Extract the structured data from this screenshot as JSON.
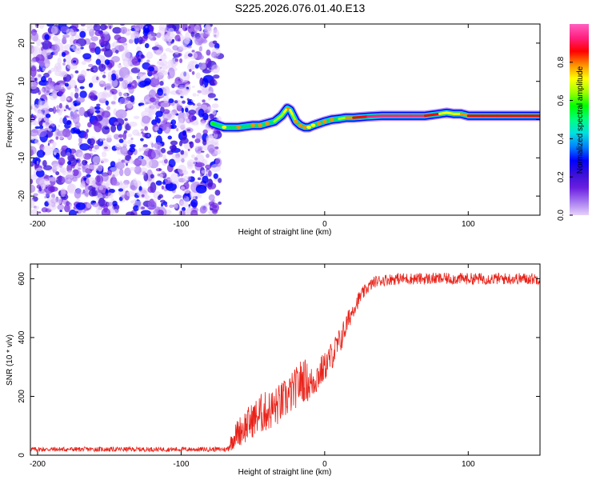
{
  "figure_title": "S225.2026.076.01.40.E13",
  "chart_data": [
    {
      "type": "heatmap",
      "title": "S225.2026.076.01.40.E13",
      "xlabel": "Height of straight line (km)",
      "ylabel": "Frequency (Hz)",
      "xlim": [
        -205,
        150
      ],
      "ylim": [
        -25,
        25
      ],
      "xticks": [
        -200,
        -100,
        0,
        100
      ],
      "xtick_labels": [
        "-200",
        "-100",
        "0",
        "100"
      ],
      "yticks": [
        -20,
        -10,
        0,
        10,
        20
      ],
      "ytick_labels": [
        "-20",
        "-10",
        "0",
        "10",
        "20"
      ],
      "noise_region_x": [
        -205,
        -73
      ],
      "signal_trace": {
        "x": [
          -78,
          -70,
          -60,
          -50,
          -45,
          -40,
          -35,
          -30,
          -28,
          -26,
          -24,
          -22,
          -20,
          -17,
          -14,
          -11,
          -8,
          -4,
          0,
          5,
          10,
          15,
          20,
          30,
          40,
          50,
          60,
          70,
          80,
          85,
          90,
          95,
          100,
          110,
          120,
          130,
          140,
          150
        ],
        "y": [
          -1,
          -2,
          -2,
          -1.5,
          -1.5,
          -1,
          -0.5,
          1,
          2,
          3,
          2.5,
          1,
          -0.5,
          -1.5,
          -2,
          -2,
          -1.5,
          -1,
          -0.5,
          0,
          0.2,
          0.5,
          0.5,
          0.8,
          1,
          1,
          1,
          1,
          1.5,
          1.8,
          1.5,
          1.5,
          1,
          1,
          1,
          1,
          1,
          1
        ],
        "amplitude": [
          0.35,
          0.45,
          0.5,
          0.5,
          0.55,
          0.55,
          0.6,
          0.65,
          0.7,
          0.75,
          0.75,
          0.7,
          0.55,
          0.5,
          0.5,
          0.45,
          0.45,
          0.5,
          0.55,
          0.55,
          0.6,
          0.75,
          0.85,
          0.9,
          0.9,
          0.95,
          0.95,
          0.9,
          0.75,
          0.7,
          0.75,
          0.7,
          0.8,
          0.85,
          0.85,
          0.85,
          0.9,
          0.85
        ]
      },
      "colorbar": {
        "label": "Normalized spectral amplitude",
        "range": [
          0,
          1
        ],
        "ticks": [
          0.0,
          0.2,
          0.4,
          0.6,
          0.8
        ],
        "tick_labels": [
          "0.0",
          "0.2",
          "0.4",
          "0.6",
          "0.8"
        ],
        "colors": [
          "#e6d2fa",
          "#a678f0",
          "#6a1fe0",
          "#3a10d8",
          "#0000ff",
          "#0080ff",
          "#00e0e0",
          "#00ff80",
          "#00ff00",
          "#a0ff00",
          "#ffff00",
          "#ff9000",
          "#ff0000",
          "#ff2080",
          "#ff60c0"
        ]
      }
    },
    {
      "type": "line",
      "xlabel": "Height of straight line (km)",
      "ylabel": "SNR (10 * v/v)",
      "xlim": [
        -205,
        150
      ],
      "ylim": [
        0,
        650
      ],
      "xticks": [
        -200,
        -100,
        0,
        100
      ],
      "xtick_labels": [
        "-200",
        "-100",
        "0",
        "100"
      ],
      "yticks": [
        0,
        200,
        400,
        600
      ],
      "ytick_labels": [
        "0",
        "200",
        "400",
        "600"
      ],
      "color": "#e8231a",
      "series": [
        {
          "name": "SNR",
          "x": [
            -205,
            -190,
            -170,
            -150,
            -130,
            -110,
            -90,
            -75,
            -68,
            -65,
            -62,
            -60,
            -55,
            -50,
            -45,
            -40,
            -35,
            -30,
            -25,
            -20,
            -15,
            -10,
            -5,
            0,
            5,
            10,
            15,
            20,
            25,
            30,
            35,
            40,
            50,
            60,
            70,
            80,
            90,
            100,
            110,
            120,
            130,
            140,
            150
          ],
          "y": [
            20,
            20,
            20,
            20,
            20,
            20,
            20,
            20,
            20,
            45,
            70,
            80,
            100,
            120,
            140,
            150,
            160,
            180,
            200,
            230,
            260,
            240,
            270,
            300,
            340,
            380,
            440,
            500,
            540,
            570,
            590,
            595,
            600,
            600,
            600,
            600,
            600,
            600,
            600,
            600,
            600,
            600,
            600
          ],
          "noise_amplitude": [
            8,
            8,
            8,
            8,
            8,
            8,
            8,
            8,
            8,
            30,
            40,
            50,
            60,
            60,
            70,
            70,
            70,
            70,
            70,
            70,
            80,
            60,
            60,
            50,
            50,
            50,
            40,
            30,
            25,
            20,
            20,
            20,
            20,
            20,
            20,
            20,
            20,
            20,
            20,
            20,
            20,
            20,
            20
          ]
        }
      ]
    }
  ]
}
